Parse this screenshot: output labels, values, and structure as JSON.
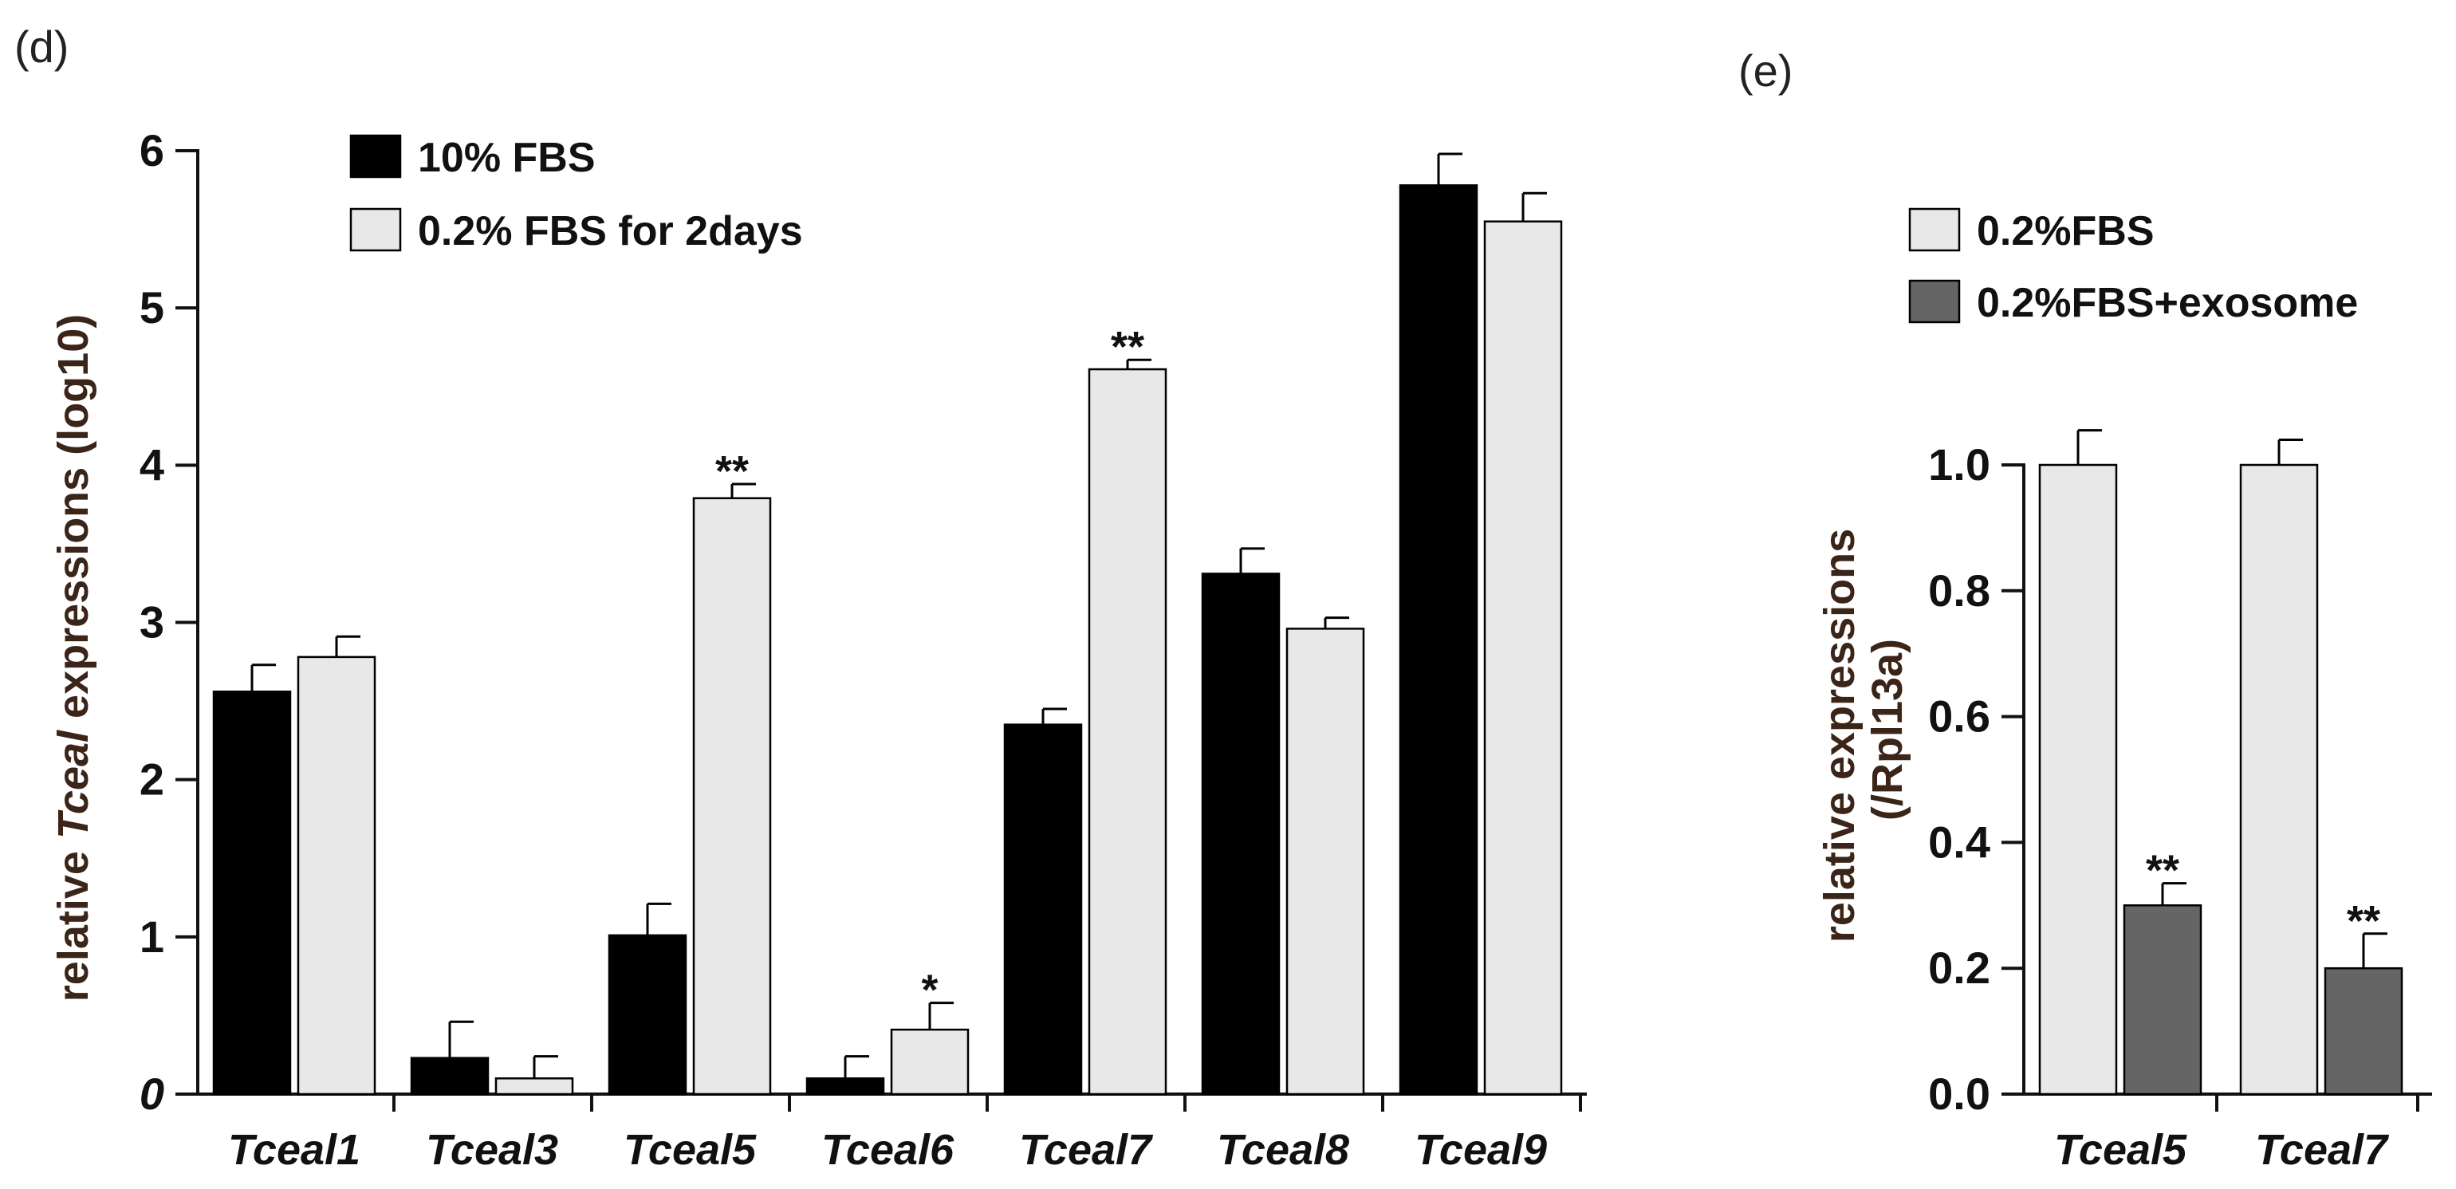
{
  "chart_data": [
    {
      "panel_label": "(d)",
      "type": "bar",
      "categories": [
        "Tceal1",
        "Tceal3",
        "Tceal5",
        "Tceal6",
        "Tceal7",
        "Tceal8",
        "Tceal9"
      ],
      "series": [
        {
          "name": "10% FBS",
          "color": "#000000",
          "values": [
            2.56,
            0.23,
            1.01,
            0.1,
            2.35,
            3.31,
            5.78
          ],
          "errors": [
            0.17,
            0.23,
            0.2,
            0.14,
            0.1,
            0.16,
            0.2
          ]
        },
        {
          "name": "0.2% FBS for 2days",
          "color": "#e8e8e8",
          "values": [
            2.78,
            0.1,
            3.79,
            0.41,
            4.61,
            2.96,
            5.55
          ],
          "errors": [
            0.13,
            0.14,
            0.09,
            0.17,
            0.06,
            0.07,
            0.18
          ]
        }
      ],
      "significance": [
        {
          "category": "Tceal5",
          "series": 1,
          "label": "**"
        },
        {
          "category": "Tceal6",
          "series": 1,
          "label": "*"
        },
        {
          "category": "Tceal7",
          "series": 1,
          "label": "**"
        }
      ],
      "ylabel_prefix": "relative ",
      "ylabel_italic": "Tceal",
      "ylabel_suffix": " expressions (log10)",
      "ylim": [
        0,
        6
      ],
      "yticks": [
        0,
        1,
        2,
        3,
        4,
        5,
        6
      ],
      "ytick_labels": [
        "0",
        "1",
        "2",
        "3",
        "4",
        "5",
        "6"
      ],
      "legend": "top-left"
    },
    {
      "panel_label": "(e)",
      "type": "bar",
      "categories": [
        "Tceal5",
        "Tceal7"
      ],
      "series": [
        {
          "name": "0.2%FBS",
          "color": "#e8e8e8",
          "values": [
            1.0,
            1.0
          ],
          "errors": [
            0.055,
            0.04
          ]
        },
        {
          "name": "0.2%FBS+exosome",
          "color": "#656565",
          "values": [
            0.3,
            0.2
          ],
          "errors": [
            0.035,
            0.055
          ]
        }
      ],
      "significance": [
        {
          "category": "Tceal5",
          "series": 1,
          "label": "**"
        },
        {
          "category": "Tceal7",
          "series": 1,
          "label": "**"
        }
      ],
      "ylabel_line1": "relative expressions",
      "ylabel_line2": "(/Rpl13a)",
      "ylim": [
        0,
        1.0
      ],
      "yticks": [
        0,
        0.2,
        0.4,
        0.6,
        0.8,
        1.0
      ],
      "ytick_labels": [
        "0.0",
        "0.2",
        "0.4",
        "0.6",
        "0.8",
        "1.0"
      ],
      "legend": "top"
    }
  ]
}
